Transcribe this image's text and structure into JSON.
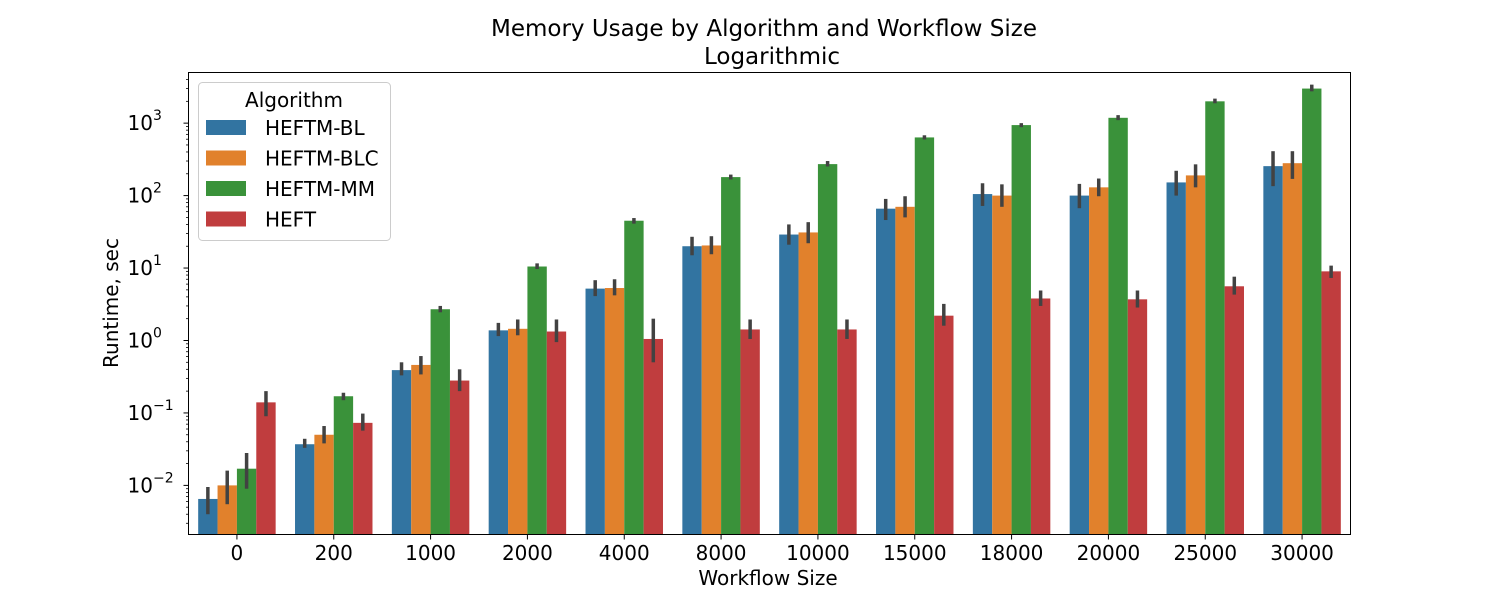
{
  "chart_data": {
    "type": "bar",
    "title": "Memory Usage by Algorithm and Workflow Size",
    "subtitle": "Logarithmic",
    "xlabel": "Workflow Size",
    "ylabel": "Runtime, sec",
    "yscale": "log",
    "ylim": [
      0.0021,
      5000
    ],
    "yticks": [
      {
        "value": 0.01,
        "base": "10",
        "exp": "−2"
      },
      {
        "value": 0.1,
        "base": "10",
        "exp": "−1"
      },
      {
        "value": 1,
        "base": "10",
        "exp": "0"
      },
      {
        "value": 10,
        "base": "10",
        "exp": "1"
      },
      {
        "value": 100,
        "base": "10",
        "exp": "2"
      },
      {
        "value": 1000,
        "base": "10",
        "exp": "3"
      }
    ],
    "categories": [
      "0",
      "200",
      "1000",
      "2000",
      "4000",
      "8000",
      "10000",
      "15000",
      "18000",
      "20000",
      "25000",
      "30000"
    ],
    "legend": {
      "title": "Algorithm",
      "position": "top-left"
    },
    "series": [
      {
        "name": "HEFTM-BL",
        "color": "#3274a1",
        "values": [
          0.0065,
          0.037,
          0.39,
          1.38,
          5.2,
          20,
          29,
          66,
          105,
          100,
          152,
          255
        ],
        "err_low": [
          0.004,
          0.033,
          0.33,
          1.15,
          4.1,
          15,
          21,
          46,
          72,
          67,
          100,
          135
        ],
        "err_high": [
          0.0095,
          0.044,
          0.5,
          1.75,
          6.8,
          27,
          40,
          90,
          148,
          145,
          220,
          410
        ]
      },
      {
        "name": "HEFTM-BLC",
        "color": "#e1812c",
        "values": [
          0.01,
          0.05,
          0.46,
          1.45,
          5.3,
          20.5,
          31,
          70,
          100,
          130,
          190,
          280
        ],
        "err_low": [
          0.0055,
          0.038,
          0.34,
          1.18,
          4.2,
          15.5,
          22,
          50,
          70,
          98,
          130,
          170
        ],
        "err_high": [
          0.016,
          0.066,
          0.61,
          1.95,
          7.0,
          27.5,
          43,
          98,
          143,
          172,
          270,
          410
        ]
      },
      {
        "name": "HEFTM-MM",
        "color": "#3a923a",
        "values": [
          0.017,
          0.17,
          2.7,
          10.5,
          45,
          180,
          272,
          635,
          940,
          1185,
          2000,
          3000
        ],
        "err_low": [
          0.009,
          0.15,
          2.45,
          9.7,
          41,
          167,
          252,
          595,
          880,
          1100,
          1880,
          2750
        ],
        "err_high": [
          0.028,
          0.19,
          3.0,
          11.6,
          49,
          195,
          300,
          680,
          1000,
          1290,
          2180,
          3400
        ]
      },
      {
        "name": "HEFT",
        "color": "#c03d3e",
        "values": [
          0.14,
          0.073,
          0.28,
          1.33,
          1.05,
          1.42,
          1.42,
          2.2,
          3.8,
          3.7,
          5.6,
          9.0
        ],
        "err_low": [
          0.09,
          0.057,
          0.2,
          0.95,
          0.5,
          1.05,
          1.05,
          1.6,
          3.0,
          2.85,
          4.3,
          7.3
        ],
        "err_high": [
          0.2,
          0.098,
          0.4,
          1.95,
          2.0,
          1.95,
          1.95,
          3.2,
          4.9,
          4.9,
          7.6,
          10.8
        ]
      }
    ]
  }
}
